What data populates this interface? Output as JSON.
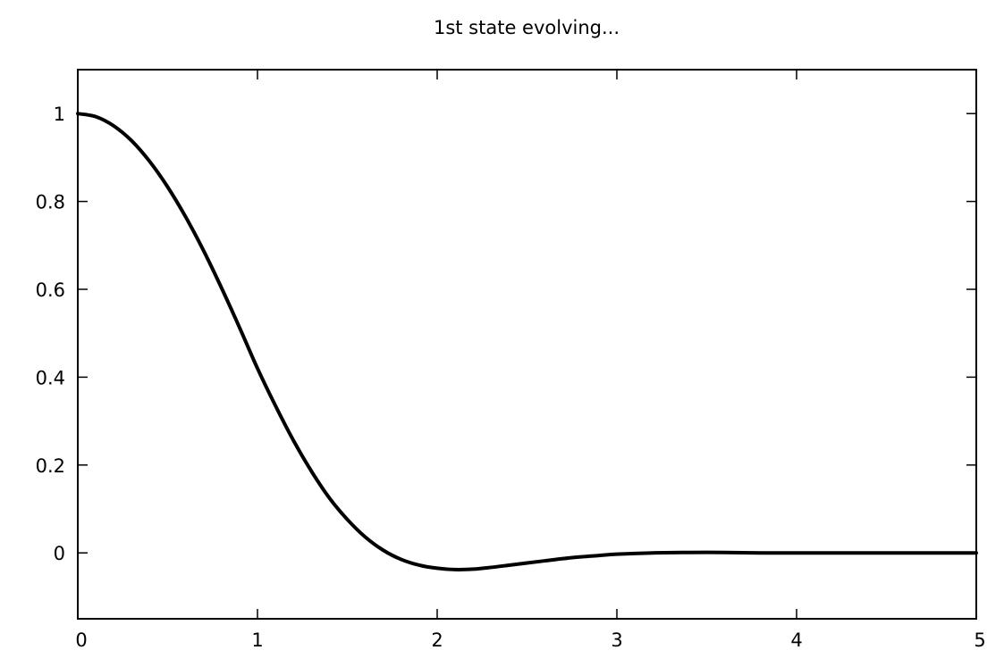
{
  "chart_data": {
    "type": "line",
    "title": "1st state evolving...",
    "xlabel": "",
    "ylabel": "",
    "xlim": [
      0,
      5
    ],
    "ylim": [
      -0.15,
      1.1
    ],
    "xticks": [
      0,
      1,
      2,
      3,
      4,
      5
    ],
    "xtick_labels": [
      "0",
      "1",
      "2",
      "3",
      "4",
      "5"
    ],
    "yticks": [
      0,
      0.2,
      0.4,
      0.6,
      0.8,
      1
    ],
    "ytick_labels": [
      "0",
      "0.2",
      "0.4",
      "0.6",
      "0.8",
      "1"
    ],
    "grid": false,
    "legend": "none",
    "colors": {
      "line": "#000000",
      "frame": "#000000"
    },
    "series": [
      {
        "x": [
          0,
          0.1,
          0.2,
          0.3,
          0.4,
          0.5,
          0.6,
          0.7,
          0.8,
          0.9,
          1.0,
          1.1,
          1.2,
          1.3,
          1.4,
          1.5,
          1.6,
          1.7,
          1.8,
          1.9,
          2.0,
          2.1,
          2.2,
          2.3,
          2.4,
          2.5,
          2.6,
          2.7,
          2.8,
          2.9,
          3.0,
          3.2,
          3.4,
          3.6,
          3.8,
          4.0,
          4.3,
          4.6,
          5.0
        ],
        "y": [
          1.0,
          0.993,
          0.972,
          0.938,
          0.891,
          0.833,
          0.765,
          0.688,
          0.603,
          0.513,
          0.42,
          0.335,
          0.256,
          0.186,
          0.125,
          0.076,
          0.036,
          0.006,
          -0.015,
          -0.028,
          -0.035,
          -0.038,
          -0.037,
          -0.033,
          -0.028,
          -0.023,
          -0.018,
          -0.013,
          -0.009,
          -0.006,
          -0.003,
          0.0,
          0.001,
          0.001,
          0.0,
          0.0,
          0.0,
          0.0,
          0.0
        ]
      }
    ]
  }
}
